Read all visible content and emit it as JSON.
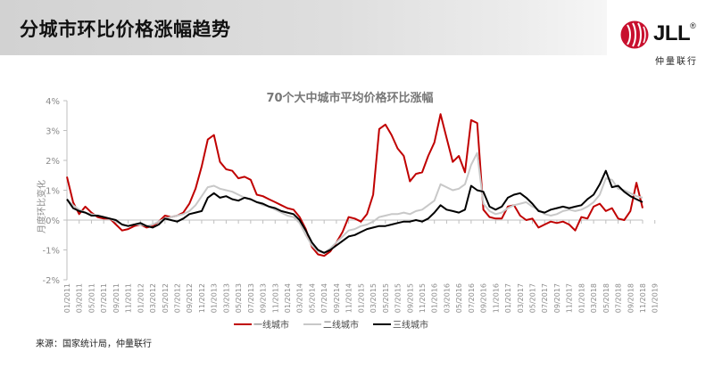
{
  "page": {
    "title": "分城市环比价格涨幅趋势",
    "source": "来源：国家统计局，仲量联行"
  },
  "logo": {
    "name": "JLL",
    "registered_mark": "®",
    "subtitle": "仲量联行",
    "accent_color": "#c8102e"
  },
  "chart_data": {
    "type": "line",
    "title": "70个大中城市平均价格环比涨幅",
    "ylabel": "月度环比变化",
    "xlabel": "",
    "ylim": [
      -2,
      4
    ],
    "yticks": [
      -2,
      -1,
      0,
      1,
      2,
      3,
      4
    ],
    "ytick_labels": [
      "-2%",
      "-1%",
      "0%",
      "1%",
      "2%",
      "3%",
      "4%"
    ],
    "grid": false,
    "legend": "bottom",
    "x_labels": [
      "01/2011",
      "03/2011",
      "05/2011",
      "07/2011",
      "09/2011",
      "11/2011",
      "01/2012",
      "03/2012",
      "05/2012",
      "07/2012",
      "09/2012",
      "11/2012",
      "01/2013",
      "03/2013",
      "05/2013",
      "07/2013",
      "09/2013",
      "11/2013",
      "01/2014",
      "03/2014",
      "05/2014",
      "07/2014",
      "09/2014",
      "11/2014",
      "01/2015",
      "03/2015",
      "05/2015",
      "07/2015",
      "09/2015",
      "11/2015",
      "01/2016",
      "03/2016",
      "05/2016",
      "07/2016",
      "09/2016",
      "11/2016",
      "01/2017",
      "03/2017",
      "05/2017",
      "07/2017",
      "09/2017",
      "11/2017",
      "01/2018",
      "03/2018",
      "05/2018",
      "07/2018",
      "09/2018",
      "11/2018",
      "01/2019"
    ],
    "series": [
      {
        "name": "一线城市",
        "color": "#c00000",
        "values": [
          1.45,
          0.6,
          0.2,
          0.45,
          0.25,
          0.1,
          0.05,
          0.05,
          -0.15,
          -0.35,
          -0.3,
          -0.2,
          -0.15,
          -0.25,
          -0.2,
          -0.05,
          0.15,
          0.1,
          0.15,
          0.25,
          0.55,
          1.05,
          1.8,
          2.7,
          2.85,
          1.95,
          1.7,
          1.65,
          1.4,
          1.45,
          1.35,
          0.85,
          0.8,
          0.7,
          0.6,
          0.5,
          0.4,
          0.35,
          0.1,
          -0.3,
          -0.9,
          -1.15,
          -1.2,
          -1.05,
          -0.75,
          -0.4,
          0.1,
          0.05,
          -0.05,
          0.2,
          0.85,
          3.05,
          3.2,
          2.85,
          2.4,
          2.15,
          1.3,
          1.55,
          1.6,
          2.15,
          2.6,
          3.55,
          2.75,
          1.95,
          2.15,
          1.6,
          3.35,
          3.25,
          0.35,
          0.1,
          0.05,
          0.05,
          0.45,
          0.5,
          0.15,
          0.0,
          0.05,
          -0.25,
          -0.15,
          -0.05,
          -0.1,
          -0.05,
          -0.15,
          -0.35,
          0.1,
          0.05,
          0.45,
          0.55,
          0.3,
          0.4,
          0.05,
          0.0,
          0.3,
          1.25,
          0.4
        ]
      },
      {
        "name": "二线城市",
        "color": "#c8c8c8",
        "values": [
          0.7,
          0.5,
          0.35,
          0.25,
          0.2,
          0.15,
          0.1,
          0.05,
          -0.05,
          -0.15,
          -0.2,
          -0.15,
          -0.15,
          -0.2,
          -0.15,
          -0.05,
          0.05,
          0.1,
          0.15,
          0.2,
          0.3,
          0.5,
          0.8,
          1.1,
          1.15,
          1.05,
          1.0,
          0.95,
          0.85,
          0.75,
          0.7,
          0.6,
          0.5,
          0.45,
          0.35,
          0.25,
          0.15,
          0.1,
          -0.1,
          -0.5,
          -0.85,
          -1.05,
          -1.1,
          -0.95,
          -0.75,
          -0.55,
          -0.35,
          -0.3,
          -0.2,
          -0.15,
          -0.05,
          0.1,
          0.15,
          0.2,
          0.2,
          0.25,
          0.2,
          0.3,
          0.35,
          0.5,
          0.65,
          1.2,
          1.1,
          1.0,
          1.05,
          1.2,
          1.85,
          2.25,
          0.55,
          0.3,
          0.2,
          0.25,
          0.4,
          0.5,
          0.55,
          0.6,
          0.45,
          0.35,
          0.2,
          0.15,
          0.2,
          0.3,
          0.35,
          0.3,
          0.35,
          0.45,
          0.6,
          0.85,
          1.4,
          1.35,
          1.05,
          1.0,
          0.9,
          0.8,
          0.75
        ]
      },
      {
        "name": "三线城市",
        "color": "#000000",
        "values": [
          0.7,
          0.4,
          0.3,
          0.25,
          0.15,
          0.15,
          0.1,
          0.05,
          0.0,
          -0.15,
          -0.2,
          -0.15,
          -0.1,
          -0.2,
          -0.25,
          -0.15,
          0.05,
          0.0,
          -0.05,
          0.05,
          0.2,
          0.25,
          0.3,
          0.75,
          0.9,
          0.75,
          0.8,
          0.7,
          0.65,
          0.75,
          0.7,
          0.6,
          0.55,
          0.45,
          0.4,
          0.3,
          0.25,
          0.2,
          0.0,
          -0.35,
          -0.75,
          -1.0,
          -1.1,
          -1.0,
          -0.85,
          -0.7,
          -0.55,
          -0.5,
          -0.4,
          -0.3,
          -0.25,
          -0.2,
          -0.2,
          -0.15,
          -0.1,
          -0.05,
          -0.05,
          0.0,
          -0.05,
          0.05,
          0.25,
          0.5,
          0.35,
          0.3,
          0.25,
          0.35,
          1.15,
          1.0,
          0.95,
          0.45,
          0.35,
          0.45,
          0.75,
          0.85,
          0.9,
          0.75,
          0.55,
          0.3,
          0.25,
          0.35,
          0.4,
          0.45,
          0.4,
          0.45,
          0.5,
          0.7,
          0.85,
          1.2,
          1.65,
          1.1,
          1.15,
          0.95,
          0.8,
          0.7,
          0.6
        ]
      }
    ]
  }
}
